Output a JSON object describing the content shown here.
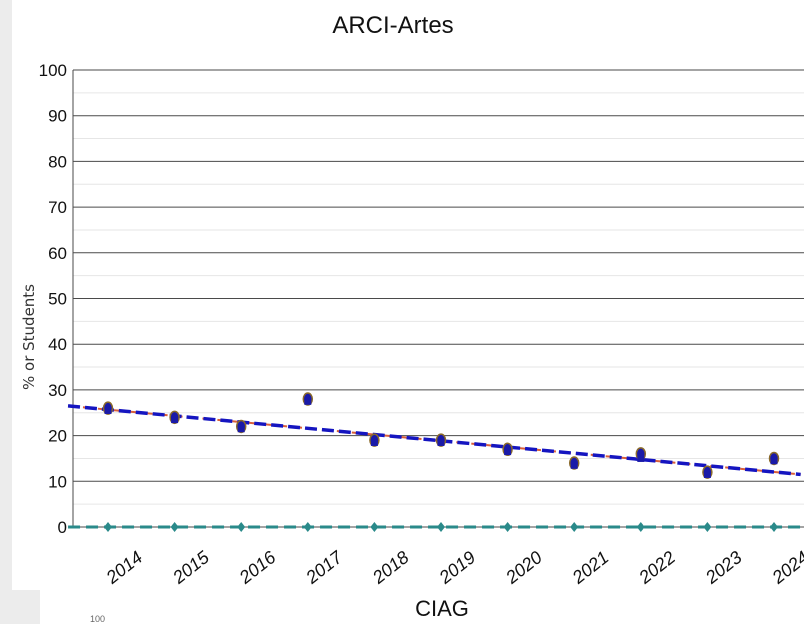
{
  "chart_data": {
    "type": "scatter",
    "title": "ARCI-Artes",
    "xlabel": "CIAG",
    "ylabel": "% or Students",
    "ylim": [
      0,
      100
    ],
    "y_ticks": [
      "0",
      "10",
      "20",
      "30",
      "40",
      "50",
      "60",
      "70",
      "80",
      "90",
      "100"
    ],
    "categories": [
      "2014",
      "2015",
      "2016",
      "2017",
      "2018",
      "2019",
      "2020",
      "2021",
      "2022",
      "2023",
      "2024"
    ],
    "grid": true,
    "series": [
      {
        "values": [
          26,
          24,
          22,
          28,
          19,
          19,
          17,
          14,
          16,
          12,
          15
        ],
        "marker": "circle",
        "color": "#1a1aa8"
      },
      {
        "values": [
          25.5,
          23.5,
          21.5,
          27.5,
          18.5,
          18.5,
          16.5,
          13.5,
          15,
          11.5,
          14.5
        ],
        "marker": "square",
        "color": "#1a1aa8"
      },
      {
        "values": [
          0,
          0,
          0,
          0,
          0,
          0,
          0,
          0,
          0,
          0,
          0
        ],
        "marker": "diamond",
        "color": "#2a8a8a"
      }
    ],
    "trendlines": [
      {
        "x_start": 2013.4,
        "y_start": 26.5,
        "x_end": 2024.4,
        "y_end": 11.5,
        "color": "#d95f3a",
        "style": "dashed"
      },
      {
        "x_start": 2013.4,
        "y_start": 26.5,
        "x_end": 2024.4,
        "y_end": 11.5,
        "color": "#1515c0",
        "style": "dashed"
      },
      {
        "x_start": 2013.4,
        "y_start": 0,
        "x_end": 2024.4,
        "y_end": 0,
        "color": "#2a8a8a",
        "style": "dashed"
      }
    ]
  },
  "stray_text": "100"
}
